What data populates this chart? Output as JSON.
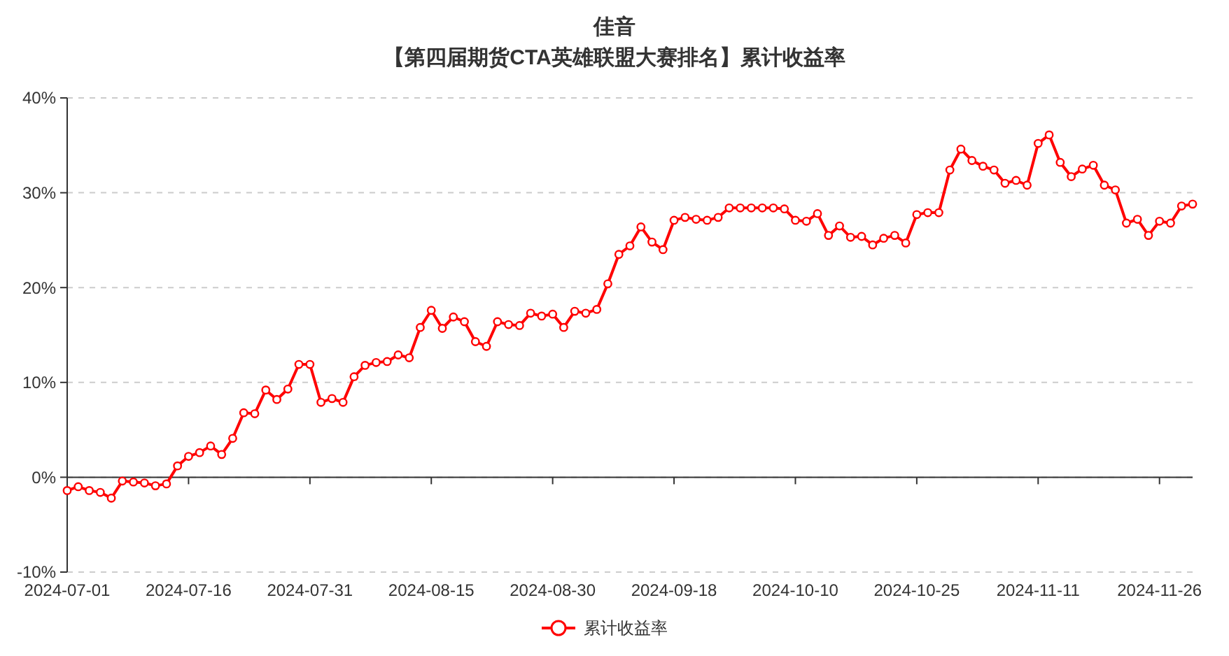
{
  "chart_data": {
    "type": "line",
    "title": "佳音",
    "subtitle": "【第四届期货CTA英雄联盟大赛排名】累计收益率",
    "categories": [
      "2024-07-01",
      null,
      null,
      null,
      null,
      null,
      null,
      null,
      null,
      null,
      null,
      "2024-07-16",
      null,
      null,
      null,
      null,
      null,
      null,
      null,
      null,
      null,
      null,
      "2024-07-31",
      null,
      null,
      null,
      null,
      null,
      null,
      null,
      null,
      null,
      null,
      "2024-08-15",
      null,
      null,
      null,
      null,
      null,
      null,
      null,
      null,
      null,
      null,
      "2024-08-30",
      null,
      null,
      null,
      null,
      null,
      null,
      null,
      null,
      null,
      null,
      "2024-09-18",
      null,
      null,
      null,
      null,
      null,
      null,
      null,
      null,
      null,
      null,
      "2024-10-10",
      null,
      null,
      null,
      null,
      null,
      null,
      null,
      null,
      null,
      null,
      "2024-10-25",
      null,
      null,
      null,
      null,
      null,
      null,
      null,
      null,
      null,
      null,
      "2024-11-11",
      null,
      null,
      null,
      null,
      null,
      null,
      null,
      null,
      null,
      null,
      "2024-11-26",
      null,
      null,
      null
    ],
    "series": [
      {
        "name": "累计收益率",
        "color": "#ff0000",
        "values": [
          -1.4,
          -1.0,
          -1.4,
          -1.6,
          -2.2,
          -0.4,
          -0.5,
          -0.6,
          -0.9,
          -0.7,
          1.2,
          2.2,
          2.6,
          3.3,
          2.4,
          4.1,
          6.8,
          6.7,
          9.2,
          8.2,
          9.3,
          11.9,
          11.9,
          7.9,
          8.3,
          7.9,
          10.6,
          11.8,
          12.1,
          12.2,
          12.9,
          12.6,
          15.8,
          17.6,
          15.7,
          16.9,
          16.4,
          14.3,
          13.8,
          16.4,
          16.1,
          16.0,
          17.3,
          17.0,
          17.2,
          15.8,
          17.5,
          17.3,
          17.7,
          20.4,
          23.5,
          24.4,
          26.4,
          24.8,
          24.0,
          27.1,
          27.4,
          27.2,
          27.1,
          27.4,
          28.4,
          28.4,
          28.4,
          28.4,
          28.4,
          28.3,
          27.1,
          27.0,
          27.8,
          25.5,
          26.5,
          25.3,
          25.4,
          24.5,
          25.2,
          25.5,
          24.7,
          27.7,
          27.9,
          27.9,
          32.4,
          34.6,
          33.4,
          32.8,
          32.4,
          31.0,
          31.3,
          30.8,
          35.2,
          36.1,
          33.2,
          31.7,
          32.5,
          32.9,
          30.8,
          30.3,
          26.8,
          27.2,
          25.5,
          27.0,
          26.8,
          28.6,
          28.8
        ]
      }
    ],
    "ylim": [
      -10,
      40
    ],
    "yticks": [
      {
        "value": -10,
        "label": "-10%"
      },
      {
        "value": 0,
        "label": "0%"
      },
      {
        "value": 10,
        "label": "10%"
      },
      {
        "value": 20,
        "label": "20%"
      },
      {
        "value": 30,
        "label": "30%"
      },
      {
        "value": 40,
        "label": "40%"
      }
    ],
    "grid": "y",
    "legend": "bottom",
    "marker": "circle",
    "line_style": "solid"
  }
}
